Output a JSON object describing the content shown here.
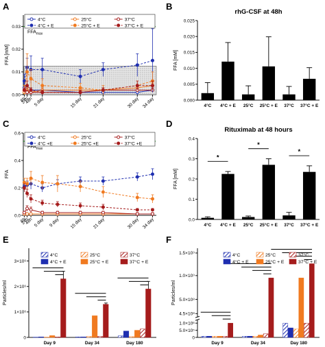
{
  "panels": {
    "A": {
      "label": "A"
    },
    "B": {
      "label": "B"
    },
    "C": {
      "label": "C"
    },
    "D": {
      "label": "D"
    },
    "E": {
      "label": "E"
    },
    "F": {
      "label": "F"
    }
  },
  "colors": {
    "c4": "#1f2fb0",
    "c25": "#f07a20",
    "c37": "#a51c1c",
    "bar": "#000000",
    "ffa_line": "#2aa22a"
  },
  "chart_data": [
    {
      "id": "A",
      "type": "line",
      "title": "",
      "xlabel": "",
      "ylabel": "FFA [mM]",
      "ylim": [
        0,
        0.035
      ],
      "yticks": [
        "0.00",
        "0.01",
        "0.02",
        "0.03"
      ],
      "categories": [
        "6h",
        "24h",
        "48h",
        "5 day",
        "15 day",
        "21 day",
        "30 day",
        "34 day"
      ],
      "x_days": [
        0.25,
        1,
        2,
        5,
        15,
        21,
        30,
        34
      ],
      "x_max": 35,
      "ffa_max_label": "FFA",
      "ffa_max_sub": "max",
      "ffa_max": 0.03,
      "shaded_band": [
        0,
        0.0125
      ],
      "legend": [
        "4°C",
        "25°C",
        "37°C",
        "4°C + E",
        "25°C + E",
        "37°C + E"
      ],
      "series": [
        {
          "name": "4°C",
          "color": "c4",
          "dashed": false,
          "values": [
            0.003,
            0.001,
            0.002,
            0.002,
            0.001,
            0.001,
            0.001,
            0.002
          ],
          "err": [
            0.002,
            0.001,
            0.001,
            0.001,
            0.001,
            0.001,
            0.001,
            0.001
          ]
        },
        {
          "name": "25°C",
          "color": "c25",
          "dashed": false,
          "values": [
            0.001,
            0.002,
            0.001,
            0.002,
            0.002,
            0.002,
            0.003,
            0.004
          ],
          "err": [
            0.001,
            0.001,
            0.001,
            0.001,
            0.001,
            0.001,
            0.001,
            0.001
          ]
        },
        {
          "name": "37°C",
          "color": "c37",
          "dashed": false,
          "values": [
            0.002,
            0.001,
            0.001,
            0.001,
            0.001,
            0.002,
            0.002,
            0.002
          ],
          "err": [
            0.001,
            0.001,
            0.001,
            0.001,
            0.001,
            0.001,
            0.001,
            0.001
          ]
        },
        {
          "name": "4°C + E",
          "color": "c4",
          "dashed": true,
          "values": [
            0.006,
            0.012,
            0.011,
            0.011,
            0.008,
            0.011,
            0.013,
            0.015
          ],
          "err": [
            0.003,
            0.004,
            0.006,
            0.005,
            0.003,
            0.003,
            0.005,
            0.014
          ]
        },
        {
          "name": "25°C + E",
          "color": "c25",
          "dashed": true,
          "values": [
            0.002,
            0.01,
            0.007,
            0.004,
            0.003,
            0.002,
            0.004,
            0.006
          ],
          "err": [
            0.002,
            0.008,
            0.004,
            0.003,
            0.002,
            0.002,
            0.002,
            0.004
          ]
        },
        {
          "name": "37°C + E",
          "color": "c37",
          "dashed": true,
          "values": [
            0.002,
            0.004,
            0.002,
            0.001,
            0.001,
            0.002,
            0.004,
            0.004
          ],
          "err": [
            0.001,
            0.002,
            0.001,
            0.001,
            0.001,
            0.001,
            0.002,
            0.002
          ]
        }
      ]
    },
    {
      "id": "B",
      "type": "bar",
      "title": "rhG-CSF at 48h",
      "xlabel": "",
      "ylabel": "FFA [mM]",
      "ylim": [
        0,
        0.025
      ],
      "yticks": [
        "0.000",
        "0.005",
        "0.010",
        "0.015",
        "0.020",
        "0.025"
      ],
      "categories": [
        "4°C",
        "4°C + E",
        "25°C",
        "25°C + E",
        "37°C",
        "37°C + E"
      ],
      "values": [
        0.0022,
        0.0121,
        0.0018,
        0.0106,
        0.0018,
        0.0067
      ],
      "err": [
        0.0033,
        0.006,
        0.0027,
        0.0093,
        0.0025,
        0.0035
      ]
    },
    {
      "id": "C",
      "type": "line",
      "title": "",
      "xlabel": "",
      "ylabel": "FFA",
      "ylim": [
        0,
        0.6
      ],
      "yticks": [
        "0.0",
        "0.2",
        "0.4",
        "0.6"
      ],
      "categories": [
        "6h",
        "24h",
        "48h",
        "5 day",
        "9 day",
        "15 day",
        "21 day",
        "30 day",
        "34 day"
      ],
      "x_days": [
        0.25,
        1,
        2,
        5,
        9,
        15,
        21,
        30,
        34
      ],
      "x_max": 35,
      "ffa_max_label": "FFA",
      "ffa_max_sub": "max",
      "ffa_max": 0.54,
      "legend": [
        "4°C",
        "25°C",
        "37°C",
        "4°C +E",
        "25°C +E",
        "37°C +E"
      ],
      "series": [
        {
          "name": "4°C",
          "color": "c4",
          "dashed": false,
          "values": [
            0.01,
            0.01,
            0.01,
            0.01,
            0.01,
            0.01,
            0.01,
            0.01,
            0.01
          ],
          "err": [
            0.005,
            0.005,
            0.005,
            0.005,
            0.005,
            0.005,
            0.005,
            0.005,
            0.005
          ]
        },
        {
          "name": "25°C",
          "color": "c25",
          "dashed": false,
          "values": [
            0.01,
            0.01,
            0.01,
            0.01,
            0.01,
            0.01,
            0.01,
            0.01,
            0.01
          ],
          "err": [
            0.005,
            0.005,
            0.005,
            0.005,
            0.005,
            0.005,
            0.005,
            0.005,
            0.005
          ]
        },
        {
          "name": "37°C",
          "color": "c37",
          "dashed": false,
          "values": [
            0.02,
            0.05,
            0.04,
            0.02,
            0.02,
            0.02,
            0.02,
            0.01,
            0.01
          ],
          "err": [
            0.01,
            0.02,
            0.02,
            0.01,
            0.01,
            0.01,
            0.01,
            0.01,
            0.01
          ]
        },
        {
          "name": "4°C +E",
          "color": "c4",
          "dashed": true,
          "values": [
            0.21,
            0.22,
            0.23,
            0.2,
            0.23,
            0.25,
            0.25,
            0.28,
            0.3
          ],
          "err": [
            0.03,
            0.03,
            0.04,
            0.03,
            0.03,
            0.03,
            0.03,
            0.03,
            0.04
          ]
        },
        {
          "name": "25°C +E",
          "color": "c25",
          "dashed": true,
          "values": [
            0.24,
            0.23,
            0.27,
            0.24,
            0.23,
            0.21,
            0.17,
            0.13,
            0.12
          ],
          "err": [
            0.03,
            0.04,
            0.05,
            0.05,
            0.06,
            0.04,
            0.04,
            0.03,
            0.03
          ]
        },
        {
          "name": "37°C +E",
          "color": "c37",
          "dashed": true,
          "values": [
            0.2,
            0.16,
            0.12,
            0.09,
            0.08,
            0.07,
            0.06,
            0.04,
            0.04
          ],
          "err": [
            0.03,
            0.03,
            0.03,
            0.02,
            0.02,
            0.02,
            0.02,
            0.01,
            0.01
          ]
        }
      ]
    },
    {
      "id": "D",
      "type": "bar",
      "title": "Rituximab at 48 hours",
      "xlabel": "",
      "ylabel": "FFA [mM]",
      "ylim": [
        0,
        0.4
      ],
      "yticks": [
        "0.0",
        "0.1",
        "0.2",
        "0.3",
        "0.4"
      ],
      "categories": [
        "4°C",
        "4°C + E",
        "25°C",
        "25°C + E",
        "37°C",
        "37°C + E"
      ],
      "values": [
        0.008,
        0.225,
        0.012,
        0.27,
        0.02,
        0.235
      ],
      "err": [
        0.005,
        0.012,
        0.005,
        0.03,
        0.015,
        0.03
      ],
      "significance": [
        "*",
        "*",
        "*"
      ]
    },
    {
      "id": "E",
      "type": "bar",
      "title": "",
      "xlabel": "",
      "ylabel": "Particles/ml",
      "ylim": [
        0,
        3.5
      ],
      "yticks": [
        "0",
        "1×10⁶",
        "2×10⁶",
        "3×10⁶"
      ],
      "categories": [
        "Day 9",
        "Day 34",
        "Day 180"
      ],
      "legend": [
        "4°C",
        "25°C",
        "37°C",
        "4°C + E",
        "25°C + E",
        "37°C + E"
      ],
      "series": [
        {
          "name": "4°C",
          "color": "c4",
          "hatched": true,
          "values": [
            0.01,
            0.02,
            0.06
          ]
        },
        {
          "name": "4°C + E",
          "color": "c4",
          "hatched": false,
          "values": [
            0.02,
            0.02,
            0.25
          ]
        },
        {
          "name": "25°C",
          "color": "c25",
          "hatched": true,
          "values": [
            0.01,
            0.04,
            0.03
          ]
        },
        {
          "name": "25°C + E",
          "color": "c25",
          "hatched": false,
          "values": [
            0.07,
            0.85,
            0.28
          ]
        },
        {
          "name": "37°C",
          "color": "c37",
          "hatched": true,
          "values": [
            0.02,
            0.04,
            0.33
          ]
        },
        {
          "name": "37°C + E",
          "color": "c37",
          "hatched": false,
          "values": [
            2.3,
            1.3,
            1.9
          ]
        }
      ],
      "err": [
        0.3,
        0.05,
        0.3
      ],
      "significance_brackets": true
    },
    {
      "id": "F",
      "type": "bar",
      "title": "",
      "xlabel": "",
      "ylabel": "Particles/ml",
      "yticks": [
        "0",
        "5.0×10⁵",
        "1.0×10⁶",
        "4.5×10⁸",
        "5.0×10⁸",
        "1.0×10⁹",
        "1.5×10⁹"
      ],
      "categories": [
        "Day 9",
        "Day 34",
        "Day 180"
      ],
      "legend": [
        "4°C",
        "25°C",
        "37°C",
        "4°C + E",
        "25°C + E",
        "37°C + E"
      ],
      "series": [
        {
          "name": "4°C",
          "color": "c4",
          "hatched": true,
          "values": [
            0.01,
            0.01,
            0.12
          ]
        },
        {
          "name": "4°C + E",
          "color": "c4",
          "hatched": false,
          "values": [
            0.01,
            0.01,
            0.08
          ]
        },
        {
          "name": "25°C",
          "color": "c25",
          "hatched": true,
          "values": [
            0.01,
            0.01,
            0.07
          ]
        },
        {
          "name": "25°C + E",
          "color": "c25",
          "hatched": false,
          "values": [
            0.01,
            0.02,
            0.5
          ]
        },
        {
          "name": "37°C",
          "color": "c37",
          "hatched": true,
          "values": [
            0.01,
            0.03,
            0.12
          ]
        },
        {
          "name": "37°C + E",
          "color": "c37",
          "hatched": false,
          "values": [
            0.12,
            0.5,
            0.62
          ]
        }
      ],
      "note": "bar heights in normalized fraction of the broken (discontinuous) y-axis",
      "significance_brackets": true
    }
  ]
}
